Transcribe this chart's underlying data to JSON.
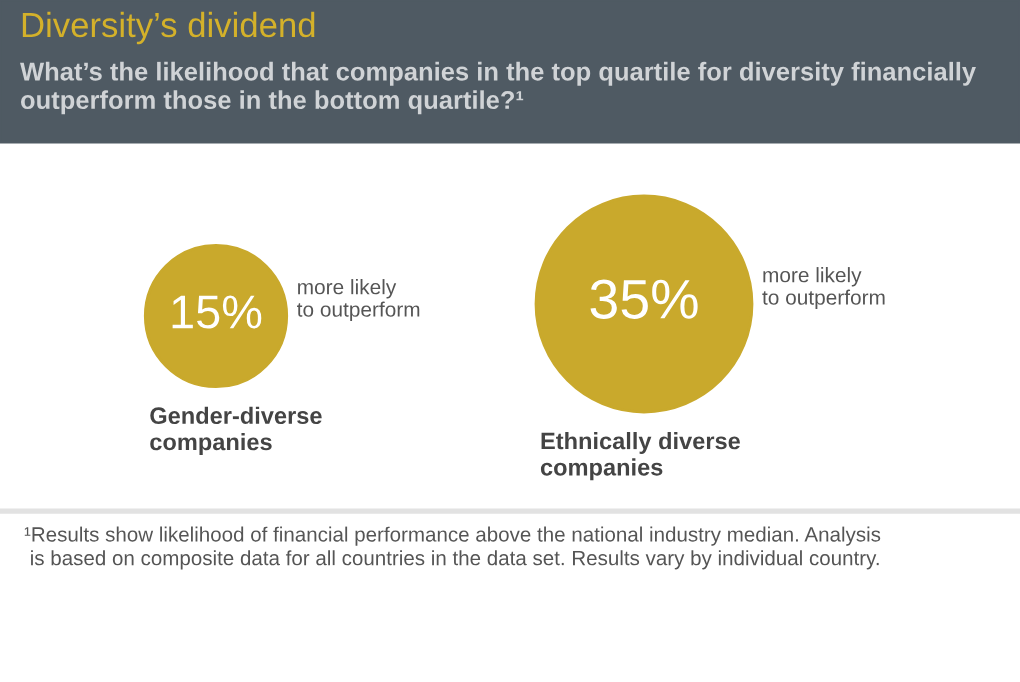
{
  "chart_data": {
    "type": "other",
    "title": "Diversity’s dividend",
    "subtitle": "What’s the likelihood that companies in the top quartile for diversity financially outperform those in the bottom quartile?¹",
    "categories": [
      "Gender-diverse\ncompanies",
      "Ethnically diverse\ncompanies"
    ],
    "values": [
      15,
      35
    ],
    "value_labels": [
      "15%",
      "35%"
    ],
    "color": "#c9a92c",
    "annotations": [
      "more likely\nto outperform",
      "more likely\nto outperform",
      "¹Results show likelihood of financial performance above the national industry median. Analysis\n is based on composite data for all countries in the data set. Results vary by individual country."
    ]
  }
}
